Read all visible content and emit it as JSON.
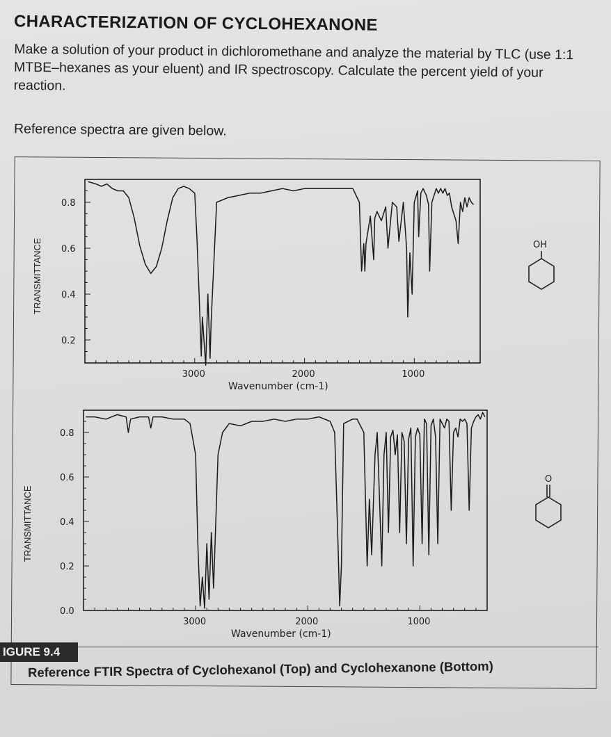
{
  "heading": "CHARACTERIZATION OF CYCLOHEXANONE",
  "paragraph": "Make a solution of your product in dichloromethane and analyze the material by TLC (use 1:1 MTBE–hexanes as your eluent) and IR spectroscopy. Calculate the percent yield of your reaction.",
  "reference_line": "Reference spectra are given below.",
  "figure_label": "IGURE 9.4",
  "figure_caption": "Reference FTIR Spectra of Cyclohexanol (Top) and Cyclohexanone (Bottom)",
  "structures": {
    "top_label": "OH",
    "bottom_label": "O"
  },
  "chart_data": [
    {
      "type": "line",
      "xlabel": "Wavenumber (cm-1)",
      "ylabel": "TRANSMITTANCE",
      "xlim": [
        4000,
        400
      ],
      "ylim": [
        0.1,
        0.9
      ],
      "xticks": [
        3000,
        2000,
        1000
      ],
      "yticks": [
        0.2,
        0.4,
        0.6,
        0.8
      ],
      "ytick_labels": [
        "0.2",
        "0.4",
        "0.6",
        "0.8"
      ],
      "xtick_labels": [
        "3000",
        "2000",
        "1000"
      ],
      "series": [
        {
          "x": [
            3970,
            3900,
            3850,
            3800,
            3750,
            3700,
            3650,
            3600,
            3550,
            3500,
            3450,
            3400,
            3350,
            3300,
            3250,
            3200,
            3150,
            3100,
            3050,
            3000,
            2980,
            2960,
            2940,
            2930,
            2900,
            2880,
            2860,
            2850,
            2800,
            2700,
            2600,
            2500,
            2400,
            2300,
            2200,
            2100,
            2000,
            1900,
            1800,
            1700,
            1650,
            1600,
            1560,
            1500,
            1480,
            1460,
            1450,
            1440,
            1400,
            1370,
            1360,
            1340,
            1300,
            1260,
            1240,
            1200,
            1160,
            1140,
            1100,
            1070,
            1060,
            1040,
            1020,
            1000,
            970,
            960,
            940,
            920,
            890,
            870,
            860,
            840,
            800,
            780,
            760,
            740,
            720,
            700,
            680,
            660,
            640,
            620,
            600,
            580,
            560,
            540,
            520,
            500,
            480,
            460
          ],
          "y": [
            0.89,
            0.88,
            0.87,
            0.88,
            0.86,
            0.85,
            0.85,
            0.82,
            0.73,
            0.61,
            0.53,
            0.49,
            0.52,
            0.6,
            0.72,
            0.82,
            0.86,
            0.87,
            0.86,
            0.84,
            0.65,
            0.4,
            0.13,
            0.3,
            0.09,
            0.4,
            0.12,
            0.28,
            0.8,
            0.82,
            0.83,
            0.84,
            0.84,
            0.85,
            0.86,
            0.85,
            0.86,
            0.86,
            0.86,
            0.86,
            0.86,
            0.86,
            0.86,
            0.8,
            0.5,
            0.62,
            0.5,
            0.62,
            0.74,
            0.55,
            0.73,
            0.76,
            0.72,
            0.78,
            0.6,
            0.8,
            0.78,
            0.63,
            0.8,
            0.6,
            0.3,
            0.58,
            0.4,
            0.8,
            0.85,
            0.65,
            0.84,
            0.86,
            0.83,
            0.79,
            0.5,
            0.8,
            0.86,
            0.84,
            0.86,
            0.84,
            0.86,
            0.83,
            0.84,
            0.78,
            0.75,
            0.72,
            0.62,
            0.8,
            0.76,
            0.82,
            0.78,
            0.82,
            0.8,
            0.79
          ]
        }
      ]
    },
    {
      "type": "line",
      "xlabel": "Wavenumber (cm-1)",
      "ylabel": "TRANSMITTANCE",
      "xlim": [
        4000,
        400
      ],
      "ylim": [
        0.0,
        0.9
      ],
      "xticks": [
        3000,
        2000,
        1000
      ],
      "yticks": [
        0.0,
        0.2,
        0.4,
        0.6,
        0.8
      ],
      "ytick_labels": [
        "0.0",
        "0.2",
        "0.4",
        "0.6",
        "0.8"
      ],
      "xtick_labels": [
        "3000",
        "2000",
        "1000"
      ],
      "series": [
        {
          "x": [
            3980,
            3900,
            3800,
            3700,
            3620,
            3600,
            3580,
            3500,
            3420,
            3400,
            3380,
            3300,
            3200,
            3100,
            3050,
            3000,
            2980,
            2960,
            2940,
            2920,
            2900,
            2880,
            2860,
            2840,
            2800,
            2760,
            2700,
            2600,
            2500,
            2400,
            2300,
            2200,
            2100,
            2000,
            1900,
            1800,
            1760,
            1730,
            1715,
            1700,
            1680,
            1600,
            1560,
            1500,
            1470,
            1450,
            1430,
            1400,
            1380,
            1340,
            1320,
            1300,
            1280,
            1260,
            1240,
            1220,
            1200,
            1180,
            1160,
            1140,
            1120,
            1100,
            1080,
            1060,
            1040,
            1020,
            1000,
            980,
            960,
            940,
            920,
            900,
            880,
            860,
            840,
            820,
            800,
            780,
            760,
            740,
            720,
            700,
            680,
            660,
            640,
            620,
            600,
            580,
            560,
            540,
            520,
            500,
            480,
            460,
            440,
            420
          ],
          "y": [
            0.87,
            0.87,
            0.86,
            0.88,
            0.87,
            0.8,
            0.86,
            0.87,
            0.87,
            0.82,
            0.87,
            0.87,
            0.86,
            0.86,
            0.84,
            0.7,
            0.3,
            0.02,
            0.15,
            0.01,
            0.3,
            0.05,
            0.35,
            0.1,
            0.7,
            0.8,
            0.84,
            0.83,
            0.85,
            0.85,
            0.86,
            0.85,
            0.86,
            0.86,
            0.87,
            0.85,
            0.8,
            0.3,
            0.02,
            0.2,
            0.84,
            0.86,
            0.86,
            0.8,
            0.2,
            0.5,
            0.25,
            0.7,
            0.8,
            0.2,
            0.7,
            0.8,
            0.35,
            0.78,
            0.81,
            0.7,
            0.79,
            0.35,
            0.8,
            0.76,
            0.3,
            0.77,
            0.82,
            0.2,
            0.78,
            0.82,
            0.79,
            0.3,
            0.86,
            0.84,
            0.25,
            0.83,
            0.86,
            0.78,
            0.3,
            0.86,
            0.84,
            0.82,
            0.86,
            0.85,
            0.45,
            0.8,
            0.82,
            0.78,
            0.86,
            0.85,
            0.86,
            0.84,
            0.45,
            0.82,
            0.85,
            0.87,
            0.88,
            0.86,
            0.89,
            0.87
          ]
        }
      ]
    }
  ]
}
